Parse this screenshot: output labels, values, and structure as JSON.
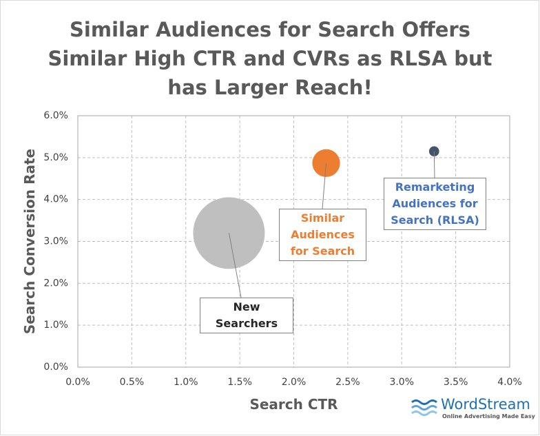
{
  "chart_data": {
    "type": "bubble",
    "title": "Similar Audiences for Search Offers\nSimilar High CTR and CVRs as RLSA but\nhas Larger Reach!",
    "x_label": "Search CTR",
    "y_label": "Search Conversion Rate",
    "xlim": [
      0,
      4
    ],
    "ylim": [
      0,
      6
    ],
    "xticks": [
      {
        "value": 0,
        "label": "0.0%"
      },
      {
        "value": 0.5,
        "label": "0.5%"
      },
      {
        "value": 1,
        "label": "1.0%"
      },
      {
        "value": 1.5,
        "label": "1.5%"
      },
      {
        "value": 2,
        "label": "2.0%"
      },
      {
        "value": 2.5,
        "label": "2.5%"
      },
      {
        "value": 3,
        "label": "3.0%"
      },
      {
        "value": 3.5,
        "label": "3.5%"
      },
      {
        "value": 4,
        "label": "4.0%"
      }
    ],
    "yticks": [
      {
        "value": 0,
        "label": "0.0%"
      },
      {
        "value": 1,
        "label": "1.0%"
      },
      {
        "value": 2,
        "label": "2.0%"
      },
      {
        "value": 3,
        "label": "3.0%"
      },
      {
        "value": 4,
        "label": "4.0%"
      },
      {
        "value": 5,
        "label": "5.0%"
      },
      {
        "value": 6,
        "label": "6.0%"
      }
    ],
    "grid": true,
    "series": [
      {
        "name": "New Searchers",
        "color": "#bfbfbf",
        "label_color": "#262626",
        "x": 1.4,
        "y": 3.2,
        "size": 100
      },
      {
        "name": "Similar Audiences for Search",
        "color": "#ed7d31",
        "label_color": "#ed7d31",
        "x": 2.3,
        "y": 4.87,
        "size": 15
      },
      {
        "name": "Remarketing Audiences for Search (RLSA)",
        "color": "#44546a",
        "label_color": "#4472c4",
        "x": 3.3,
        "y": 5.15,
        "size": 2
      }
    ]
  },
  "logo": {
    "name": "WordStream",
    "tagline": "Online Advertising Made Easy"
  }
}
